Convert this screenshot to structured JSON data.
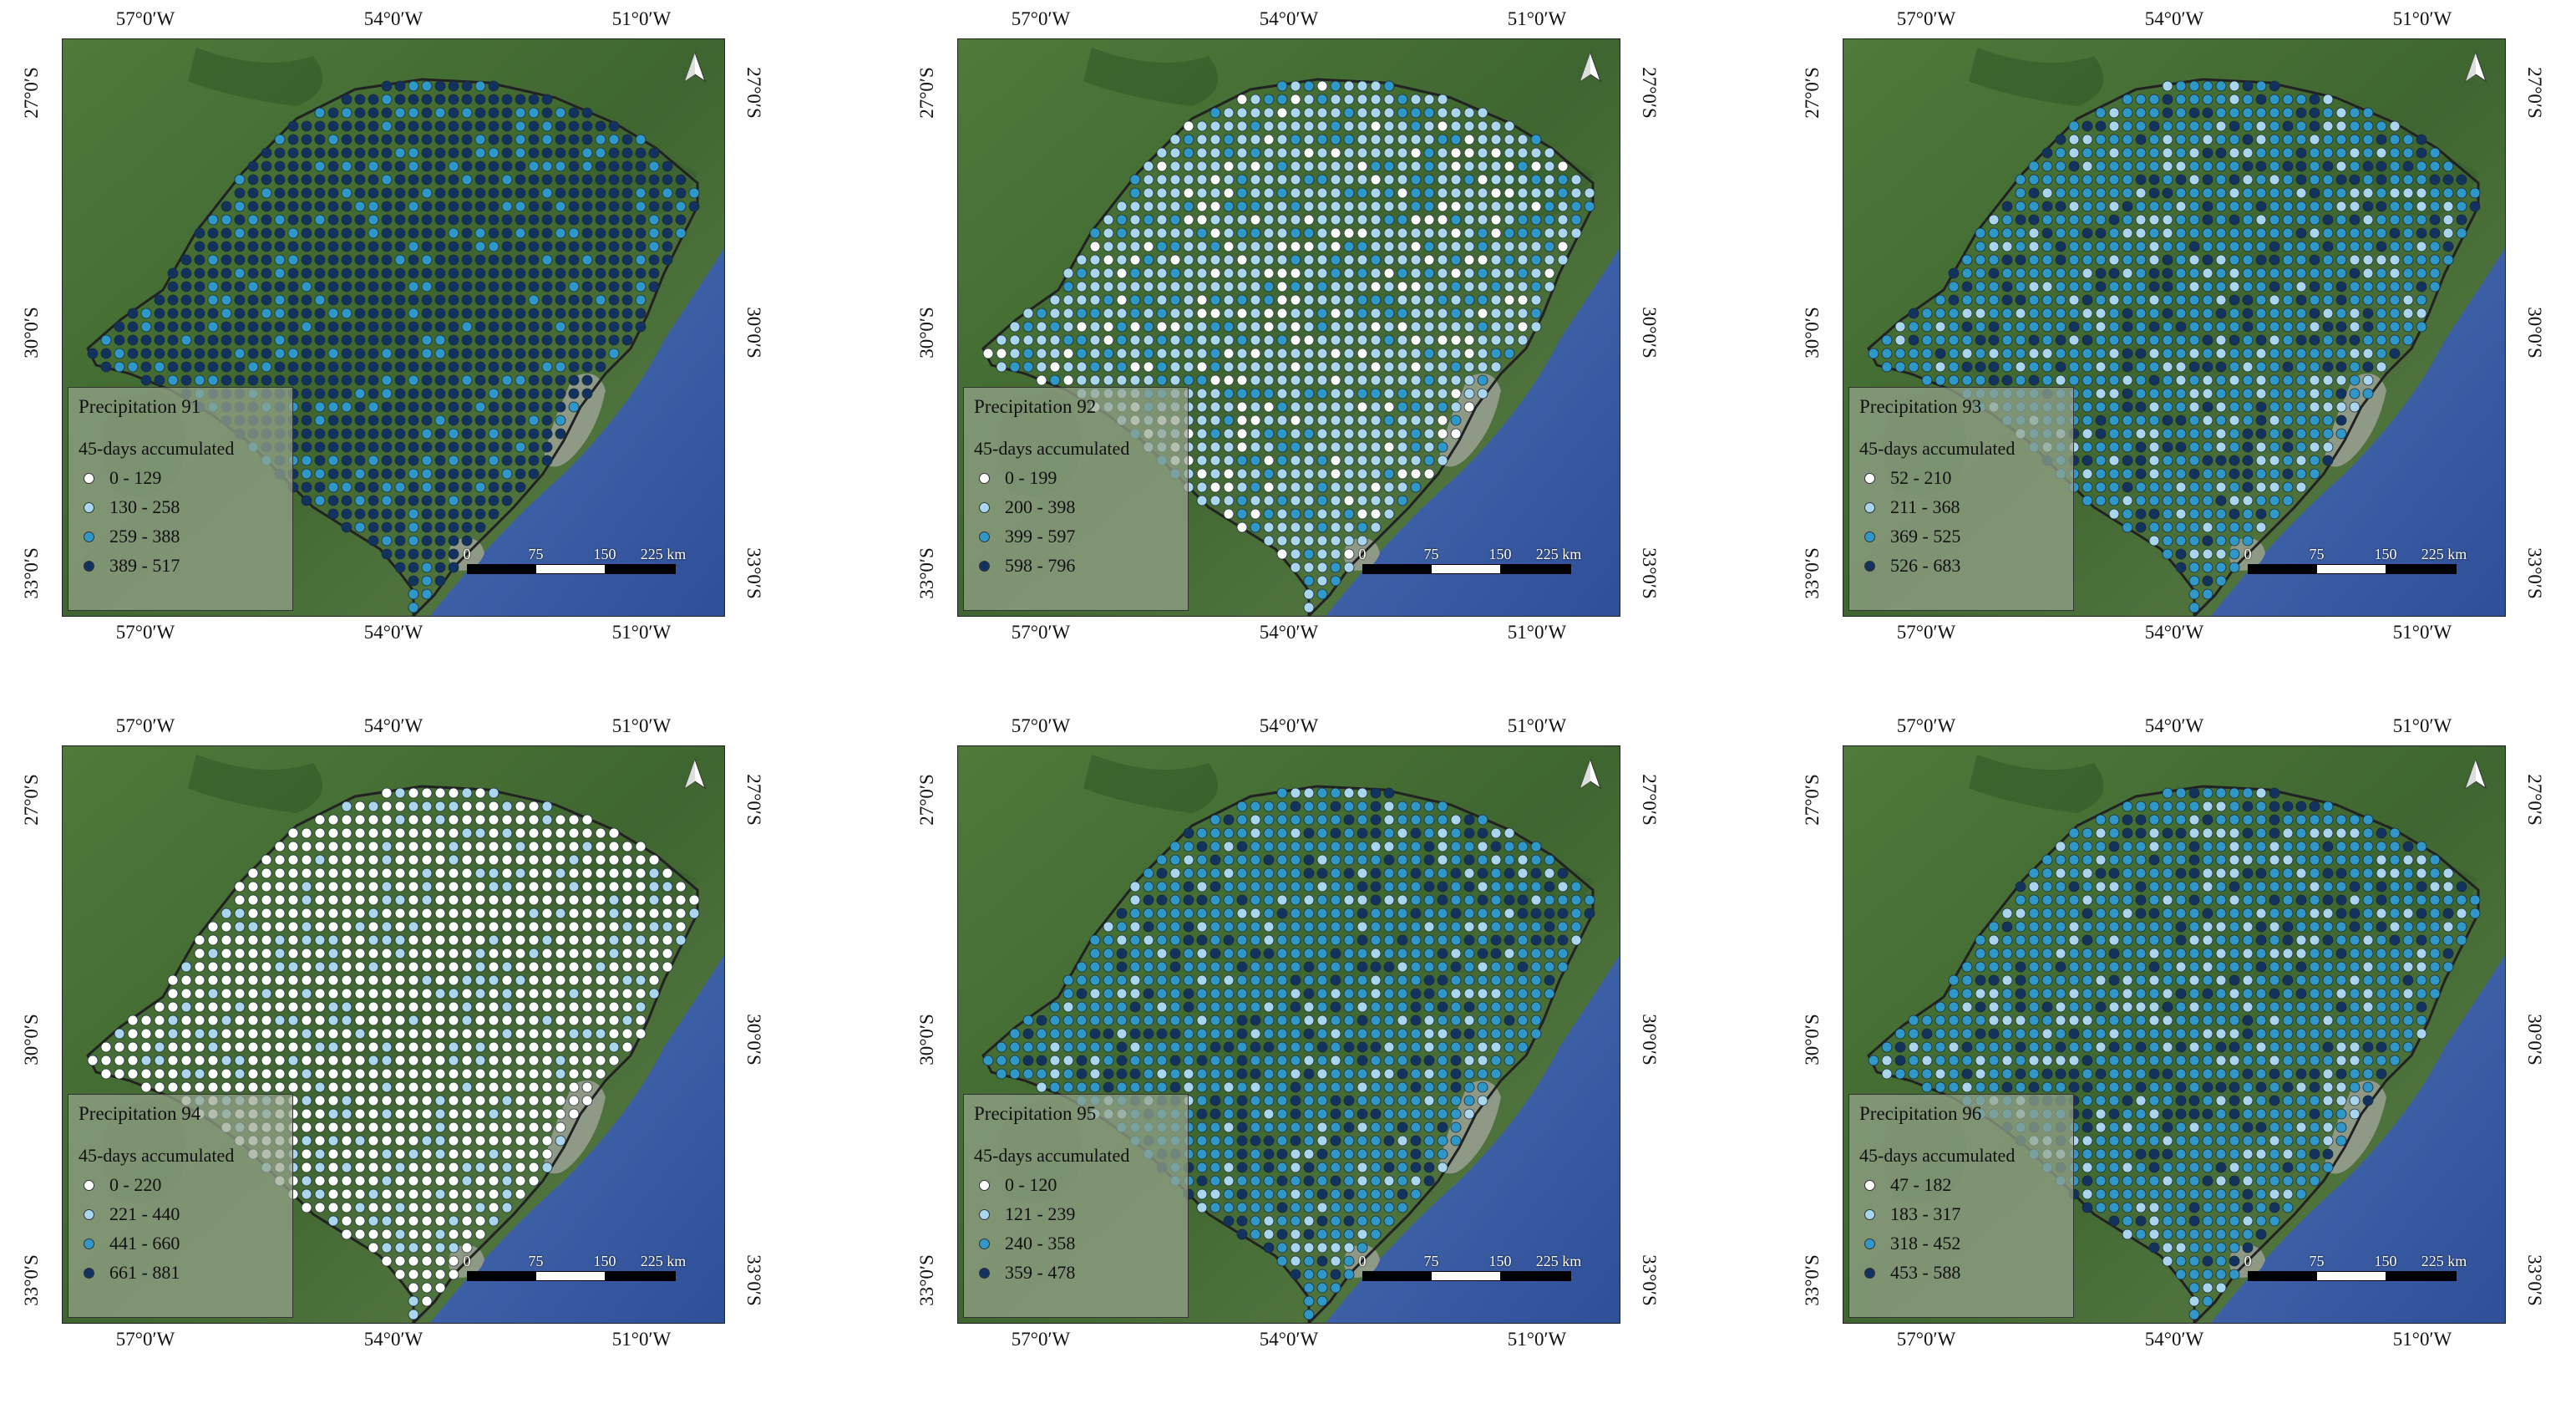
{
  "coordinates": {
    "longitude_labels": [
      "57°0′W",
      "54°0′W",
      "51°0′W"
    ],
    "latitude_labels": [
      "27°0′S",
      "30°0′S",
      "33°0′S"
    ]
  },
  "scale_bar": {
    "ticks": [
      "0",
      "75",
      "150",
      "225 km"
    ]
  },
  "legend_subtitle": "45-days accumulated",
  "class_colors": [
    "#ffffff",
    "#a9d6ee",
    "#2f98c8",
    "#12335f"
  ],
  "maps": [
    {
      "title": "Precipitation 91",
      "classes": [
        "0 - 129",
        "130 - 258",
        "259 - 388",
        "389 - 517"
      ],
      "dominant_class": 3
    },
    {
      "title": "Precipitation 92",
      "classes": [
        "0 - 199",
        "200 - 398",
        "399 - 597",
        "598 - 796"
      ],
      "dominant_class": 1
    },
    {
      "title": "Precipitation 93",
      "classes": [
        "52 - 210",
        "211 - 368",
        "369 - 525",
        "526 - 683"
      ],
      "dominant_class": 2
    },
    {
      "title": "Precipitation 94",
      "classes": [
        "0 - 220",
        "221 - 440",
        "441 - 660",
        "661 - 881"
      ],
      "dominant_class": 0
    },
    {
      "title": "Precipitation 95",
      "classes": [
        "0 - 120",
        "121 - 239",
        "240 - 358",
        "359 - 478"
      ],
      "dominant_class": 2
    },
    {
      "title": "Precipitation 96",
      "classes": [
        "47 - 182",
        "183 - 317",
        "318 - 452",
        "453 - 588"
      ],
      "dominant_class": 2
    }
  ]
}
